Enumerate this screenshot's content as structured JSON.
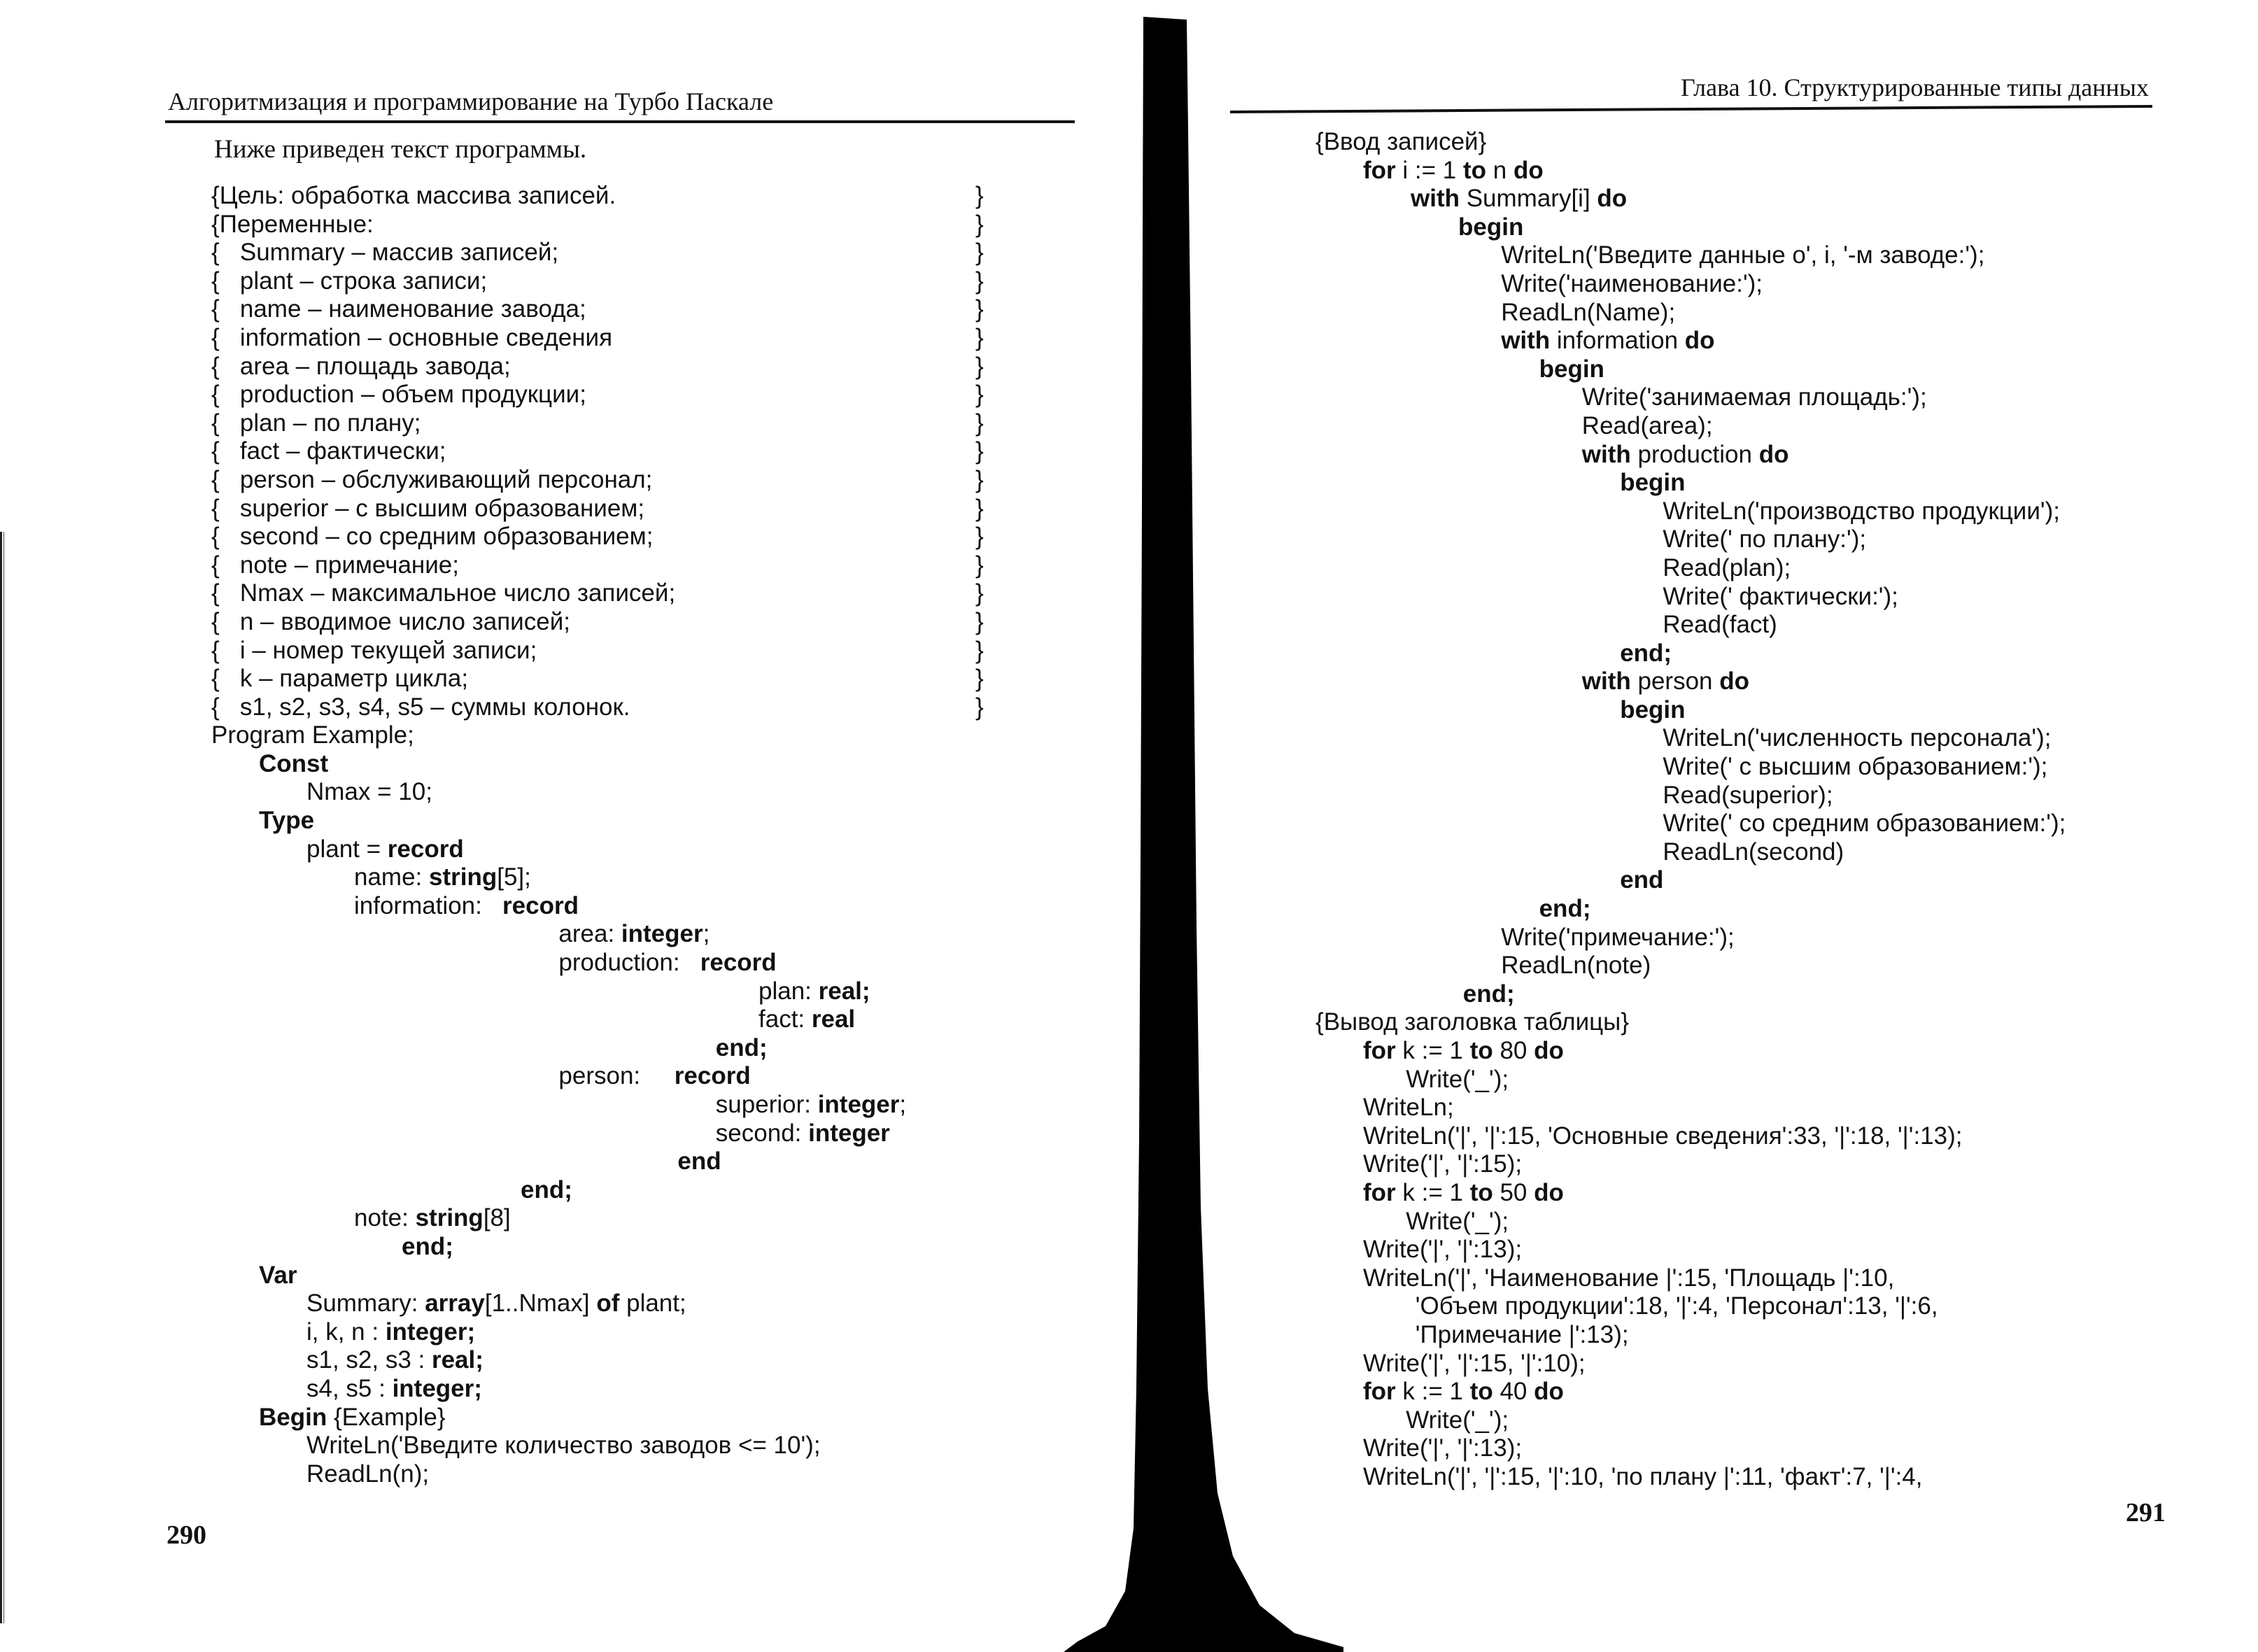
{
  "left_page": {
    "running_head": "Алгоритмизация и программирование на Турбо Паскале",
    "page_number": "290",
    "intro": "Ниже приведен текст программы.",
    "code": [
      {
        "i": 0,
        "t": "{Цель: обработка массива записей.",
        "b": true
      },
      {
        "i": 0,
        "t": "{Переменные:",
        "b": true
      },
      {
        "i": 0,
        "t": "{   Summary – массив записей;",
        "b": true
      },
      {
        "i": 0,
        "t": "{   plant – строка записи;",
        "b": true
      },
      {
        "i": 0,
        "t": "{   name – наименование завода;",
        "b": true
      },
      {
        "i": 0,
        "t": "{   information – основные сведения",
        "b": true
      },
      {
        "i": 0,
        "t": "{   area – площадь завода;",
        "b": true
      },
      {
        "i": 0,
        "t": "{   production – объем продукции;",
        "b": true
      },
      {
        "i": 0,
        "t": "{   plan – по плану;",
        "b": true
      },
      {
        "i": 0,
        "t": "{   fact – фактически;",
        "b": true
      },
      {
        "i": 0,
        "t": "{   person – обслуживающий персонал;",
        "b": true
      },
      {
        "i": 0,
        "t": "{   superior – с высшим образованием;",
        "b": true
      },
      {
        "i": 0,
        "t": "{   second – со средним образованием;",
        "b": true
      },
      {
        "i": 0,
        "t": "{   note – примечание;",
        "b": true
      },
      {
        "i": 0,
        "t": "{   Nmax – максимальное число записей;",
        "b": true
      },
      {
        "i": 0,
        "t": "{   n – вводимое число записей;",
        "b": true
      },
      {
        "i": 0,
        "t": "{   i – номер текущей записи;",
        "b": true
      },
      {
        "i": 0,
        "t": "{   k – параметр цикла;",
        "b": true
      },
      {
        "i": 0,
        "t": "{   s1, s2, s3, s4, s5 – суммы колонок.",
        "b": true
      },
      {
        "i": 0,
        "t": "Program Example;"
      },
      {
        "i": 1,
        "k": "Const"
      },
      {
        "i": 2,
        "t": "Nmax = 10;"
      },
      {
        "i": 1,
        "k": "Type"
      },
      {
        "i": 2,
        "t": "plant = ",
        "k": "record"
      },
      {
        "i": 3,
        "t": "name: ",
        "k": "string",
        "a": "[5];"
      },
      {
        "i": 3,
        "t": "information:   ",
        "k": "record"
      },
      {
        "i": 7.3,
        "t": "area: ",
        "k": "integer",
        "a": ";"
      },
      {
        "i": 7.3,
        "t": "production:   ",
        "k": "record"
      },
      {
        "i": 11.5,
        "t": "plan: ",
        "k": "real;"
      },
      {
        "i": 11.5,
        "t": "fact: ",
        "k": "real"
      },
      {
        "i": 10.6,
        "k": "end;"
      },
      {
        "i": 7.3,
        "t": "person:     ",
        "k": "record"
      },
      {
        "i": 10.6,
        "t": "superior: ",
        "k": "integer",
        "a": ";"
      },
      {
        "i": 10.6,
        "t": "second: ",
        "k": "integer"
      },
      {
        "i": 9.8,
        "k": "end"
      },
      {
        "i": 6.5,
        "k": "end;"
      },
      {
        "i": 3,
        "t": "note: ",
        "k": "string",
        "a": "[8]"
      },
      {
        "i": 4,
        "k": "end;"
      },
      {
        "i": 1,
        "k": "Var"
      },
      {
        "i": 2,
        "t": "Summary: ",
        "k": "array",
        "a": "[1..Nmax] ",
        "k2": "of",
        "a2": " plant;"
      },
      {
        "i": 2,
        "t": "i, k, n : ",
        "k": "integer;"
      },
      {
        "i": 2,
        "t": "s1, s2, s3 : ",
        "k": "real;"
      },
      {
        "i": 2,
        "t": "s4, s5 : ",
        "k": "integer;"
      },
      {
        "i": 1,
        "k": "Begin",
        "a": " {Example}"
      },
      {
        "i": 2,
        "t": "WriteLn('Введите количество заводов <= 10');"
      },
      {
        "i": 2,
        "t": "ReadLn(n);"
      }
    ]
  },
  "right_page": {
    "running_head": "Глава 10. Структурированные типы данных",
    "page_number": "291",
    "code": [
      {
        "i": 0,
        "t": "{Ввод записей}"
      },
      {
        "i": 1,
        "k": "for",
        "a": " i := 1 ",
        "k2": "to",
        "a2": " n ",
        "k3": "do"
      },
      {
        "i": 2,
        "k": "with",
        "a": " Summary[i] ",
        "k2": "do"
      },
      {
        "i": 3,
        "k": "begin"
      },
      {
        "i": 3.9,
        "t": "WriteLn('Введите данные о', i, '-м заводе:');"
      },
      {
        "i": 3.9,
        "t": "Write('наименование:');"
      },
      {
        "i": 3.9,
        "t": "ReadLn(Name);"
      },
      {
        "i": 3.9,
        "k": "with",
        "a": " information ",
        "k2": "do"
      },
      {
        "i": 4.7,
        "k": "begin"
      },
      {
        "i": 5.6,
        "t": "Write('занимаемая площадь:');"
      },
      {
        "i": 5.6,
        "t": "Read(area);"
      },
      {
        "i": 5.6,
        "k": "with",
        "a": " production ",
        "k2": "do"
      },
      {
        "i": 6.4,
        "k": "begin"
      },
      {
        "i": 7.3,
        "t": "WriteLn('производство продукции');"
      },
      {
        "i": 7.3,
        "t": "Write(' по плану:');"
      },
      {
        "i": 7.3,
        "t": "Read(plan);"
      },
      {
        "i": 7.3,
        "t": "Write(' фактически:');"
      },
      {
        "i": 7.3,
        "t": "Read(fact)"
      },
      {
        "i": 6.4,
        "k": "end;"
      },
      {
        "i": 5.6,
        "k": "with",
        "a": " person ",
        "k2": "do"
      },
      {
        "i": 6.4,
        "k": "begin"
      },
      {
        "i": 7.3,
        "t": "WriteLn('численность персонала');"
      },
      {
        "i": 7.3,
        "t": "Write(' с высшим образованием:');"
      },
      {
        "i": 7.3,
        "t": "Read(superior);"
      },
      {
        "i": 7.3,
        "t": "Write(' со средним образованием:');"
      },
      {
        "i": 7.3,
        "t": "ReadLn(second)"
      },
      {
        "i": 6.4,
        "k": "end"
      },
      {
        "i": 4.7,
        "k": "end;"
      },
      {
        "i": 3.9,
        "t": "Write('примечание:');"
      },
      {
        "i": 3.9,
        "t": "ReadLn(note)"
      },
      {
        "i": 3.1,
        "k": "end;"
      },
      {
        "i": 0,
        "t": "{Вывод заголовка таблицы}"
      },
      {
        "i": 1,
        "k": "for",
        "a": " k := 1 ",
        "k2": "to",
        "a2": " 80 ",
        "k3": "do"
      },
      {
        "i": 1.9,
        "t": "Write('_');"
      },
      {
        "i": 1,
        "t": "WriteLn;"
      },
      {
        "i": 1,
        "t": "WriteLn('|', '|':15, 'Основные сведения':33, '|':18, '|':13);"
      },
      {
        "i": 1,
        "t": "Write('|', '|':15);"
      },
      {
        "i": 1,
        "k": "for",
        "a": " k := 1 ",
        "k2": "to",
        "a2": " 50 ",
        "k3": "do"
      },
      {
        "i": 1.9,
        "t": "Write('_');"
      },
      {
        "i": 1,
        "t": "Write('|', '|':13);"
      },
      {
        "i": 1,
        "t": "WriteLn('|', 'Наименование |':15, 'Площадь |':10,"
      },
      {
        "i": 2.1,
        "t": "'Объем продукции':18, '|':4, 'Персонал':13, '|':6,"
      },
      {
        "i": 2.1,
        "t": "'Примечание |':13);"
      },
      {
        "i": 1,
        "t": "Write('|', '|':15, '|':10);"
      },
      {
        "i": 1,
        "k": "for",
        "a": " k := 1 ",
        "k2": "to",
        "a2": " 40 ",
        "k3": "do"
      },
      {
        "i": 1.9,
        "t": "Write('_');"
      },
      {
        "i": 1,
        "t": "Write('|', '|':13);"
      },
      {
        "i": 1,
        "t": "WriteLn('|', '|':15, '|':10, 'по плану |':11, 'факт':7, '|':4,"
      }
    ]
  },
  "colors": {
    "text": "#111111",
    "paper": "#ffffff",
    "spine": "#000000"
  }
}
